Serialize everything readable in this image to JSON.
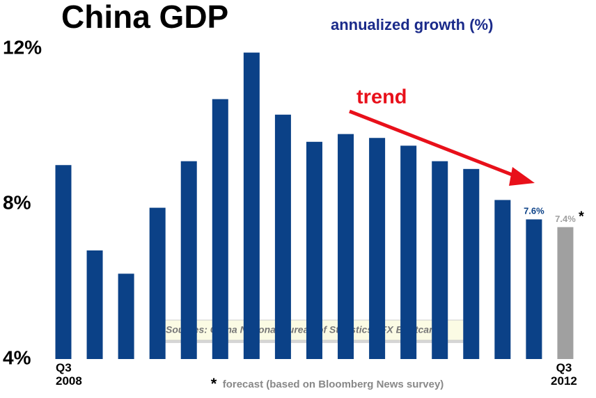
{
  "chart_data": {
    "type": "bar",
    "title": "China GDP",
    "subtitle": "annualized growth (%)",
    "annotation": "trend",
    "source": "Sources: China National Bureau of Statistics / FX Bootcamp",
    "footnote": {
      "marker": "*",
      "text": "forecast (based on Bloomberg News survey)"
    },
    "categories": [
      "Q3 2008",
      null,
      null,
      null,
      null,
      null,
      null,
      null,
      null,
      null,
      null,
      null,
      null,
      null,
      null,
      null,
      "Q3 2012"
    ],
    "values": [
      9.0,
      6.8,
      6.2,
      7.9,
      9.1,
      10.7,
      11.9,
      10.3,
      9.6,
      9.8,
      9.7,
      9.5,
      9.1,
      8.9,
      8.1,
      7.6,
      7.4
    ],
    "value_labels": [
      null,
      null,
      null,
      null,
      null,
      null,
      null,
      null,
      null,
      null,
      null,
      null,
      null,
      null,
      null,
      "7.6%",
      "7.4%"
    ],
    "colors": [
      "#0b4187",
      "#0b4187",
      "#0b4187",
      "#0b4187",
      "#0b4187",
      "#0b4187",
      "#0b4187",
      "#0b4187",
      "#0b4187",
      "#0b4187",
      "#0b4187",
      "#0b4187",
      "#0b4187",
      "#0b4187",
      "#0b4187",
      "#0b4187",
      "#a0a0a0"
    ],
    "ylim": [
      4,
      12
    ],
    "yticks": [
      {
        "value": 4,
        "label": "4%"
      },
      {
        "value": 8,
        "label": "8%"
      },
      {
        "value": 12,
        "label": "12%"
      }
    ],
    "grid": false
  }
}
